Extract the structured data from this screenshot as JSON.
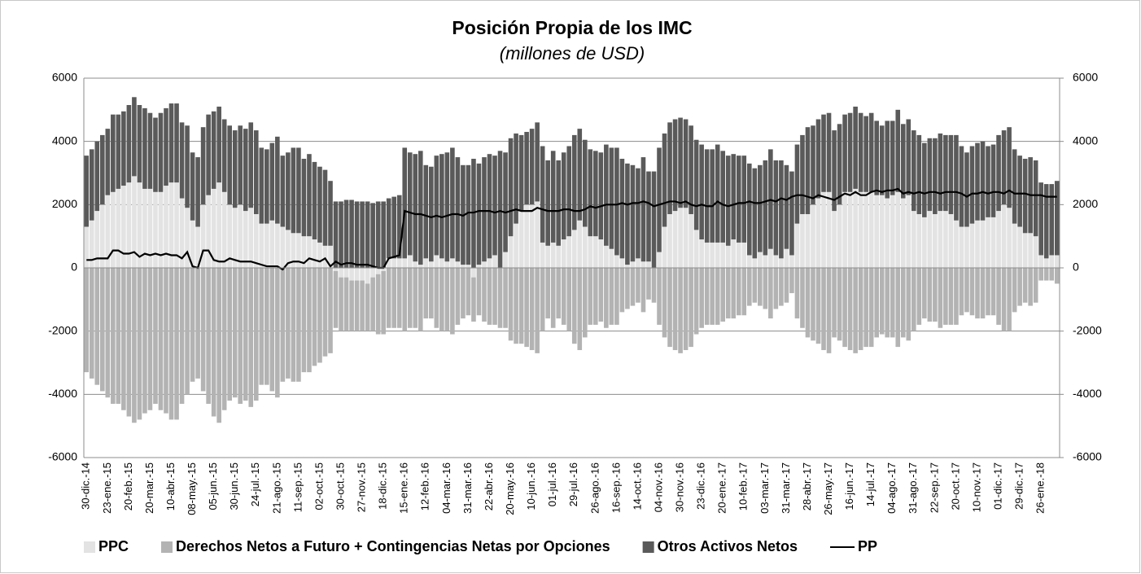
{
  "chart_data": {
    "type": "bar",
    "stacked": true,
    "title": "Posición Propia de los IMC",
    "subtitle": "(millones de USD)",
    "categories": [
      "30-dic.-14",
      null,
      null,
      null,
      "23-ene.-15",
      null,
      null,
      null,
      "20-feb.-15",
      null,
      null,
      null,
      "20-mar.-15",
      null,
      null,
      null,
      "10-abr.-15",
      null,
      null,
      null,
      "08-may.-15",
      null,
      null,
      null,
      "05-jun.-15",
      null,
      null,
      null,
      "30-jun.-15",
      null,
      null,
      null,
      "24-jul.-15",
      null,
      null,
      null,
      "21-ago.-15",
      null,
      null,
      null,
      "11-sep.-15",
      null,
      null,
      null,
      "02-oct.-15",
      null,
      null,
      null,
      "30-oct.-15",
      null,
      null,
      null,
      "27-nov.-15",
      null,
      null,
      null,
      "18-dic.-15",
      null,
      null,
      null,
      "15-ene.-16",
      null,
      null,
      null,
      "12-feb.-16",
      null,
      null,
      null,
      "04-mar.-16",
      null,
      null,
      null,
      "31-mar.-16",
      null,
      null,
      null,
      "22-abr.-16",
      null,
      null,
      null,
      "20-may.-16",
      null,
      null,
      null,
      "10-jun.-16",
      null,
      null,
      null,
      "01-jul.-16",
      null,
      null,
      null,
      "29-jul.-16",
      null,
      null,
      null,
      "26-ago.-16",
      null,
      null,
      null,
      "16-sep.-16",
      null,
      null,
      null,
      "14-oct.-16",
      null,
      null,
      null,
      "04-nov.-16",
      null,
      null,
      null,
      "30-nov.-16",
      null,
      null,
      null,
      "23-dic.-16",
      null,
      null,
      null,
      "20-ene.-17",
      null,
      null,
      null,
      "10-feb.-17",
      null,
      null,
      null,
      "03-mar.-17",
      null,
      null,
      null,
      "31-mar.-17",
      null,
      null,
      null,
      "28-abr.-17",
      null,
      null,
      null,
      "26-may.-17",
      null,
      null,
      null,
      "16-jun.-17",
      null,
      null,
      null,
      "14-jul.-17",
      null,
      null,
      null,
      "04-ago.-17",
      null,
      null,
      null,
      "31-ago.-17",
      null,
      null,
      null,
      "22-sep.-17",
      null,
      null,
      null,
      "20-oct.-17",
      null,
      null,
      null,
      "10-nov.-17",
      null,
      null,
      null,
      "01-dic.-17",
      null,
      null,
      null,
      "29-dic.-17",
      null,
      null,
      null,
      "26-ene.-18",
      null,
      null,
      null
    ],
    "series": [
      {
        "name": "PPC",
        "color": "#e3e3e3",
        "values": [
          1300,
          1500,
          1800,
          2000,
          2300,
          2400,
          2500,
          2600,
          2700,
          2900,
          2700,
          2500,
          2500,
          2400,
          2400,
          2600,
          2700,
          2700,
          2200,
          1900,
          1500,
          1300,
          2000,
          2300,
          2500,
          2700,
          2400,
          2000,
          1900,
          2000,
          1800,
          1900,
          1700,
          1400,
          1400,
          1500,
          1400,
          1300,
          1200,
          1100,
          1100,
          1000,
          1000,
          900,
          800,
          700,
          700,
          -100,
          -300,
          -300,
          -400,
          -400,
          -400,
          -500,
          -300,
          -200,
          -100,
          300,
          300,
          300,
          300,
          400,
          200,
          100,
          300,
          200,
          400,
          300,
          200,
          300,
          200,
          100,
          100,
          -300,
          100,
          200,
          300,
          400,
          0,
          500,
          1000,
          1400,
          1800,
          2000,
          2000,
          2100,
          800,
          700,
          800,
          700,
          900,
          1000,
          1200,
          1500,
          1300,
          1000,
          1000,
          900,
          700,
          600,
          400,
          300,
          100,
          200,
          300,
          200,
          200,
          0,
          500,
          1300,
          1700,
          1800,
          1900,
          1900,
          1700,
          1200,
          900,
          800,
          800,
          800,
          800,
          700,
          900,
          800,
          800,
          400,
          300,
          500,
          400,
          600,
          400,
          300,
          600,
          400,
          1400,
          1700,
          1700,
          2000,
          2200,
          2400,
          2400,
          1800,
          2000,
          2400,
          2400,
          2500,
          2400,
          2400,
          2400,
          2300,
          2300,
          2200,
          2300,
          2400,
          2200,
          2300,
          1800,
          1700,
          1600,
          1800,
          1700,
          1800,
          1800,
          1700,
          1500,
          1300,
          1300,
          1400,
          1500,
          1500,
          1600,
          1600,
          1800,
          2000,
          1900,
          1400,
          1300,
          1100,
          1100,
          1000,
          400,
          300,
          400,
          400
        ]
      },
      {
        "name": "Derechos Netos a Futuro + Contingencias Netas por Opciones",
        "color": "#b3b3b3",
        "values": [
          -3300,
          -3500,
          -3700,
          -3900,
          -4100,
          -4300,
          -4300,
          -4500,
          -4700,
          -4900,
          -4800,
          -4600,
          -4500,
          -4300,
          -4500,
          -4600,
          -4800,
          -4800,
          -4300,
          -4000,
          -3600,
          -3500,
          -3900,
          -4300,
          -4700,
          -4900,
          -4500,
          -4200,
          -4100,
          -4300,
          -4200,
          -4400,
          -4200,
          -3700,
          -3700,
          -3900,
          -4100,
          -3600,
          -3500,
          -3600,
          -3600,
          -3300,
          -3300,
          -3100,
          -3000,
          -2800,
          -2700,
          -1800,
          -1700,
          -1700,
          -1600,
          -1600,
          -1600,
          -1500,
          -1700,
          -1900,
          -2000,
          -1900,
          -1900,
          -1900,
          -2000,
          -1900,
          -1900,
          -2000,
          -1600,
          -1600,
          -1900,
          -2000,
          -2000,
          -2100,
          -1800,
          -1600,
          -1500,
          -1400,
          -1500,
          -1700,
          -1800,
          -1800,
          -1900,
          -1900,
          -2300,
          -2400,
          -2400,
          -2500,
          -2600,
          -2700,
          -2000,
          -1600,
          -1900,
          -1600,
          -1800,
          -2000,
          -2400,
          -2600,
          -2200,
          -1800,
          -1800,
          -1700,
          -1900,
          -1800,
          -1800,
          -1400,
          -1300,
          -1200,
          -1100,
          -1400,
          -1000,
          -1100,
          -1800,
          -2200,
          -2500,
          -2600,
          -2700,
          -2600,
          -2500,
          -2100,
          -1900,
          -1800,
          -1800,
          -1800,
          -1700,
          -1600,
          -1600,
          -1500,
          -1500,
          -1200,
          -1100,
          -1200,
          -1300,
          -1600,
          -1300,
          -1200,
          -1100,
          -800,
          -1600,
          -1900,
          -2200,
          -2300,
          -2400,
          -2600,
          -2700,
          -2200,
          -2300,
          -2500,
          -2600,
          -2700,
          -2600,
          -2500,
          -2500,
          -2200,
          -2100,
          -2200,
          -2200,
          -2500,
          -2200,
          -2300,
          -2000,
          -1800,
          -1600,
          -1700,
          -1700,
          -1900,
          -1800,
          -1800,
          -1800,
          -1500,
          -1400,
          -1500,
          -1600,
          -1600,
          -1500,
          -1500,
          -1800,
          -2000,
          -2000,
          -1400,
          -1200,
          -1100,
          -1200,
          -1100,
          -400,
          -400,
          -400,
          -500
        ]
      },
      {
        "name": "Otros Activos Netos",
        "color": "#5a5a5a",
        "values": [
          2250,
          2250,
          2200,
          2200,
          2100,
          2450,
          2350,
          2350,
          2450,
          2500,
          2450,
          2550,
          2400,
          2350,
          2500,
          2450,
          2500,
          2500,
          2400,
          2600,
          2150,
          2200,
          2450,
          2550,
          2450,
          2400,
          2300,
          2500,
          2450,
          2500,
          2600,
          2700,
          2650,
          2400,
          2350,
          2450,
          2750,
          2250,
          2450,
          2700,
          2700,
          2450,
          2600,
          2450,
          2400,
          2400,
          2050,
          2100,
          2100,
          2150,
          2150,
          2100,
          2100,
          2100,
          2050,
          2100,
          2100,
          1900,
          1950,
          2000,
          3500,
          3250,
          3400,
          3600,
          2950,
          3000,
          3150,
          3300,
          3450,
          3500,
          3300,
          3150,
          3150,
          3450,
          3200,
          3300,
          3300,
          3150,
          3700,
          3150,
          3100,
          2850,
          2400,
          2300,
          2400,
          2500,
          3050,
          2700,
          2900,
          2700,
          2750,
          2850,
          3000,
          2900,
          2750,
          2750,
          2700,
          2750,
          3200,
          3200,
          3400,
          3150,
          3200,
          3050,
          2850,
          3300,
          2850,
          3050,
          3300,
          2950,
          2900,
          2900,
          2850,
          2800,
          2800,
          2850,
          3000,
          2950,
          2950,
          3100,
          2900,
          2850,
          2700,
          2750,
          2750,
          2900,
          2850,
          2750,
          3000,
          3150,
          3000,
          3100,
          2650,
          2650,
          2500,
          2500,
          2750,
          2500,
          2500,
          2450,
          2500,
          2550,
          2550,
          2450,
          2500,
          2600,
          2500,
          2400,
          2500,
          2350,
          2200,
          2450,
          2350,
          2600,
          2350,
          2400,
          2550,
          2500,
          2350,
          2300,
          2400,
          2450,
          2400,
          2500,
          2700,
          2550,
          2350,
          2450,
          2450,
          2500,
          2250,
          2300,
          2400,
          2350,
          2550,
          2350,
          2250,
          2350,
          2400,
          2400,
          2300,
          2350,
          2250,
          2350
        ]
      },
      {
        "name": "PP",
        "type": "line",
        "color": "#000000",
        "values": [
          250,
          250,
          300,
          300,
          300,
          550,
          550,
          450,
          450,
          500,
          350,
          450,
          400,
          450,
          400,
          450,
          400,
          400,
          300,
          500,
          50,
          0,
          550,
          550,
          250,
          200,
          200,
          300,
          250,
          200,
          200,
          200,
          150,
          100,
          50,
          50,
          50,
          -50,
          150,
          200,
          200,
          150,
          300,
          250,
          200,
          300,
          50,
          200,
          100,
          150,
          150,
          100,
          100,
          100,
          50,
          0,
          0,
          300,
          350,
          400,
          1800,
          1750,
          1700,
          1700,
          1650,
          1600,
          1650,
          1600,
          1650,
          1700,
          1700,
          1650,
          1750,
          1750,
          1800,
          1800,
          1800,
          1750,
          1800,
          1750,
          1800,
          1850,
          1800,
          1800,
          1800,
          1900,
          1850,
          1800,
          1800,
          1800,
          1850,
          1850,
          1800,
          1800,
          1850,
          1950,
          1900,
          1950,
          2000,
          2000,
          2000,
          2050,
          2000,
          2050,
          2050,
          2100,
          2050,
          1950,
          2000,
          2050,
          2100,
          2100,
          2050,
          2100,
          2000,
          1950,
          2000,
          1950,
          1950,
          2100,
          2000,
          1950,
          2000,
          2050,
          2050,
          2100,
          2050,
          2050,
          2100,
          2150,
          2100,
          2200,
          2150,
          2250,
          2300,
          2300,
          2250,
          2200,
          2300,
          2250,
          2200,
          2150,
          2250,
          2350,
          2300,
          2400,
          2300,
          2300,
          2400,
          2450,
          2400,
          2450,
          2450,
          2500,
          2350,
          2400,
          2350,
          2400,
          2350,
          2400,
          2400,
          2350,
          2400,
          2400,
          2400,
          2350,
          2250,
          2350,
          2350,
          2400,
          2350,
          2400,
          2400,
          2350,
          2450,
          2350,
          2350,
          2350,
          2300,
          2300,
          2300,
          2250,
          2250,
          2250
        ]
      }
    ],
    "ylim": [
      -6000,
      6000
    ],
    "yticks": [
      -6000,
      -4000,
      -2000,
      0,
      2000,
      4000,
      6000
    ],
    "y2lim": [
      -6000,
      6000
    ],
    "y2ticks": [
      -6000,
      -4000,
      -2000,
      0,
      2000,
      4000,
      6000
    ],
    "grid": true,
    "legend": "bottom"
  }
}
